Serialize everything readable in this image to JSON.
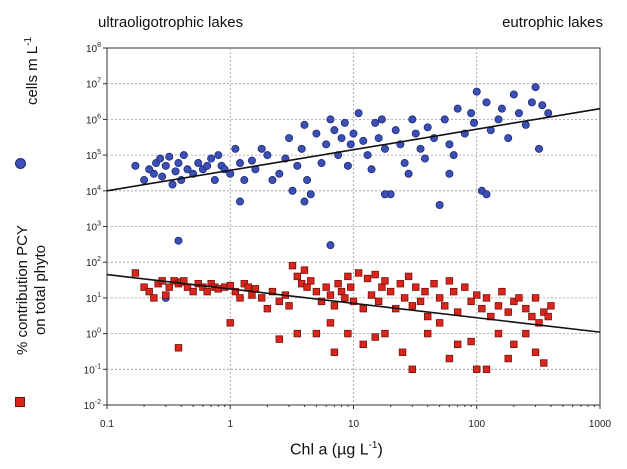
{
  "chart_data": {
    "type": "scatter",
    "x_scale": "log",
    "y_scale": "log",
    "xlim": [
      0.1,
      1000
    ],
    "ylim": [
      0.01,
      100000000
    ],
    "grid": true,
    "x_ticks": [
      "0.1",
      "1",
      "10",
      "100",
      "1000"
    ],
    "y_tick_exponents": [
      "-2",
      "-1",
      "0",
      "1",
      "2",
      "3",
      "4",
      "5",
      "6",
      "7",
      "8"
    ],
    "y_tick_base": "10",
    "top_labels": {
      "left": "ultraoligotrophic lakes",
      "right": "eutrophic lakes"
    },
    "xlabel_main": "Chl a (µg L",
    "xlabel_exp": "-1",
    "xlabel_end": ")",
    "ylabel_cells_main": "cells m L",
    "ylabel_cells_exp": "-1",
    "ylabel_pcy_line1": "% contribution PCY",
    "ylabel_pcy_line2": "on total phyto",
    "series": [
      {
        "marker": "circle",
        "color": "#3b4fb5",
        "points": [
          [
            0.17,
            50000
          ],
          [
            0.2,
            20000
          ],
          [
            0.22,
            40000
          ],
          [
            0.24,
            30000
          ],
          [
            0.25,
            60000
          ],
          [
            0.27,
            80000
          ],
          [
            0.28,
            25000
          ],
          [
            0.3,
            50000
          ],
          [
            0.32,
            90000
          ],
          [
            0.34,
            15000
          ],
          [
            0.36,
            35000
          ],
          [
            0.38,
            60000
          ],
          [
            0.4,
            20000
          ],
          [
            0.42,
            100000
          ],
          [
            0.45,
            40000
          ],
          [
            0.5,
            30000
          ],
          [
            0.55,
            60000
          ],
          [
            0.6,
            40000
          ],
          [
            0.65,
            50000
          ],
          [
            0.7,
            80000
          ],
          [
            0.75,
            20000
          ],
          [
            0.8,
            100000
          ],
          [
            0.85,
            50000
          ],
          [
            0.9,
            40000
          ],
          [
            1.0,
            30000
          ],
          [
            1.1,
            150000
          ],
          [
            1.2,
            60000
          ],
          [
            1.3,
            20000
          ],
          [
            1.5,
            70000
          ],
          [
            1.6,
            40000
          ],
          [
            1.8,
            150000
          ],
          [
            2.0,
            100000
          ],
          [
            2.2,
            20000
          ],
          [
            2.5,
            30000
          ],
          [
            2.8,
            80000
          ],
          [
            3.0,
            300000
          ],
          [
            3.2,
            10000
          ],
          [
            3.5,
            50000
          ],
          [
            3.8,
            150000
          ],
          [
            4.0,
            700000
          ],
          [
            4.2,
            20000
          ],
          [
            4.5,
            8000
          ],
          [
            5.0,
            400000
          ],
          [
            5.5,
            60000
          ],
          [
            6.0,
            200000
          ],
          [
            6.5,
            1000000
          ],
          [
            7.0,
            500000
          ],
          [
            7.5,
            100000
          ],
          [
            8.0,
            300000
          ],
          [
            8.5,
            800000
          ],
          [
            9.0,
            50000
          ],
          [
            9.5,
            200000
          ],
          [
            10,
            400000
          ],
          [
            11,
            1500000
          ],
          [
            12,
            250000
          ],
          [
            13,
            100000
          ],
          [
            14,
            40000
          ],
          [
            15,
            800000
          ],
          [
            16,
            300000
          ],
          [
            17,
            1000000
          ],
          [
            18,
            150000
          ],
          [
            20,
            8000
          ],
          [
            22,
            500000
          ],
          [
            24,
            200000
          ],
          [
            26,
            60000
          ],
          [
            28,
            30000
          ],
          [
            30,
            1000000
          ],
          [
            32,
            400000
          ],
          [
            35,
            150000
          ],
          [
            38,
            80000
          ],
          [
            40,
            600000
          ],
          [
            45,
            300000
          ],
          [
            50,
            4000
          ],
          [
            55,
            1000000
          ],
          [
            60,
            200000
          ],
          [
            65,
            100000
          ],
          [
            70,
            2000000
          ],
          [
            80,
            400000
          ],
          [
            90,
            1500000
          ],
          [
            95,
            800000
          ],
          [
            100,
            6000000
          ],
          [
            110,
            10000
          ],
          [
            120,
            3000000
          ],
          [
            130,
            500000
          ],
          [
            150,
            1000000
          ],
          [
            160,
            2000000
          ],
          [
            180,
            300000
          ],
          [
            200,
            5000000
          ],
          [
            220,
            1500000
          ],
          [
            250,
            700000
          ],
          [
            280,
            3000000
          ],
          [
            300,
            8000000
          ],
          [
            320,
            150000
          ],
          [
            340,
            2500000
          ],
          [
            380,
            1500000
          ],
          [
            0.38,
            400
          ],
          [
            6.5,
            300
          ],
          [
            0.3,
            10
          ],
          [
            1.2,
            5000
          ],
          [
            4.0,
            5000
          ],
          [
            18,
            8000
          ],
          [
            120,
            8000
          ],
          [
            60,
            30000
          ]
        ]
      },
      {
        "marker": "square",
        "color": "#d8261c",
        "points": [
          [
            0.17,
            50
          ],
          [
            0.2,
            20
          ],
          [
            0.22,
            15
          ],
          [
            0.24,
            10
          ],
          [
            0.26,
            25
          ],
          [
            0.28,
            30
          ],
          [
            0.3,
            12
          ],
          [
            0.32,
            20
          ],
          [
            0.35,
            30
          ],
          [
            0.38,
            25
          ],
          [
            0.4,
            28
          ],
          [
            0.42,
            30
          ],
          [
            0.45,
            20
          ],
          [
            0.5,
            15
          ],
          [
            0.55,
            25
          ],
          [
            0.6,
            20
          ],
          [
            0.65,
            15
          ],
          [
            0.7,
            25
          ],
          [
            0.75,
            20
          ],
          [
            0.8,
            18
          ],
          [
            0.9,
            20
          ],
          [
            1.0,
            22
          ],
          [
            1.1,
            15
          ],
          [
            1.2,
            10
          ],
          [
            1.3,
            25
          ],
          [
            1.4,
            20
          ],
          [
            1.5,
            12
          ],
          [
            1.6,
            18
          ],
          [
            1.8,
            10
          ],
          [
            2.0,
            5
          ],
          [
            2.2,
            15
          ],
          [
            2.5,
            8
          ],
          [
            2.8,
            12
          ],
          [
            3.0,
            6
          ],
          [
            3.2,
            80
          ],
          [
            3.5,
            40
          ],
          [
            3.8,
            25
          ],
          [
            4.0,
            60
          ],
          [
            4.2,
            20
          ],
          [
            4.5,
            30
          ],
          [
            5.0,
            15
          ],
          [
            5.5,
            8
          ],
          [
            6.0,
            20
          ],
          [
            6.5,
            12
          ],
          [
            7.0,
            6
          ],
          [
            7.5,
            25
          ],
          [
            8.0,
            15
          ],
          [
            8.5,
            10
          ],
          [
            9.0,
            40
          ],
          [
            9.5,
            20
          ],
          [
            10,
            8
          ],
          [
            11,
            50
          ],
          [
            12,
            5
          ],
          [
            13,
            35
          ],
          [
            14,
            12
          ],
          [
            15,
            45
          ],
          [
            16,
            8
          ],
          [
            17,
            20
          ],
          [
            18,
            30
          ],
          [
            20,
            15
          ],
          [
            22,
            5
          ],
          [
            24,
            25
          ],
          [
            26,
            10
          ],
          [
            28,
            40
          ],
          [
            30,
            6
          ],
          [
            32,
            20
          ],
          [
            35,
            8
          ],
          [
            38,
            15
          ],
          [
            40,
            3
          ],
          [
            45,
            25
          ],
          [
            50,
            10
          ],
          [
            55,
            6
          ],
          [
            60,
            30
          ],
          [
            65,
            15
          ],
          [
            70,
            4
          ],
          [
            80,
            20
          ],
          [
            90,
            8
          ],
          [
            100,
            12
          ],
          [
            110,
            5
          ],
          [
            120,
            10
          ],
          [
            130,
            3
          ],
          [
            150,
            6
          ],
          [
            160,
            15
          ],
          [
            180,
            4
          ],
          [
            200,
            8
          ],
          [
            220,
            10
          ],
          [
            250,
            5
          ],
          [
            280,
            3
          ],
          [
            300,
            10
          ],
          [
            320,
            2
          ],
          [
            350,
            4
          ],
          [
            380,
            3
          ],
          [
            400,
            6
          ],
          [
            1.0,
            2
          ],
          [
            3.5,
            1
          ],
          [
            5.0,
            1
          ],
          [
            6.5,
            2
          ],
          [
            9.0,
            1
          ],
          [
            12,
            0.5
          ],
          [
            18,
            1
          ],
          [
            25,
            0.3
          ],
          [
            30,
            0.1
          ],
          [
            40,
            1
          ],
          [
            50,
            2
          ],
          [
            70,
            0.5
          ],
          [
            100,
            0.1
          ],
          [
            120,
            0.1
          ],
          [
            150,
            1
          ],
          [
            200,
            0.5
          ],
          [
            300,
            0.3
          ],
          [
            350,
            0.15
          ],
          [
            0.38,
            0.4
          ],
          [
            2.5,
            0.7
          ],
          [
            7.0,
            0.3
          ],
          [
            15,
            0.8
          ],
          [
            60,
            0.2
          ],
          [
            90,
            0.6
          ],
          [
            180,
            0.2
          ],
          [
            250,
            1
          ]
        ]
      }
    ],
    "fit_lines": [
      {
        "color": "#111111",
        "from": [
          0.1,
          10000
        ],
        "to": [
          1000,
          2000000
        ]
      },
      {
        "color": "#111111",
        "from": [
          0.1,
          45
        ],
        "to": [
          1000,
          1.1
        ]
      }
    ]
  }
}
